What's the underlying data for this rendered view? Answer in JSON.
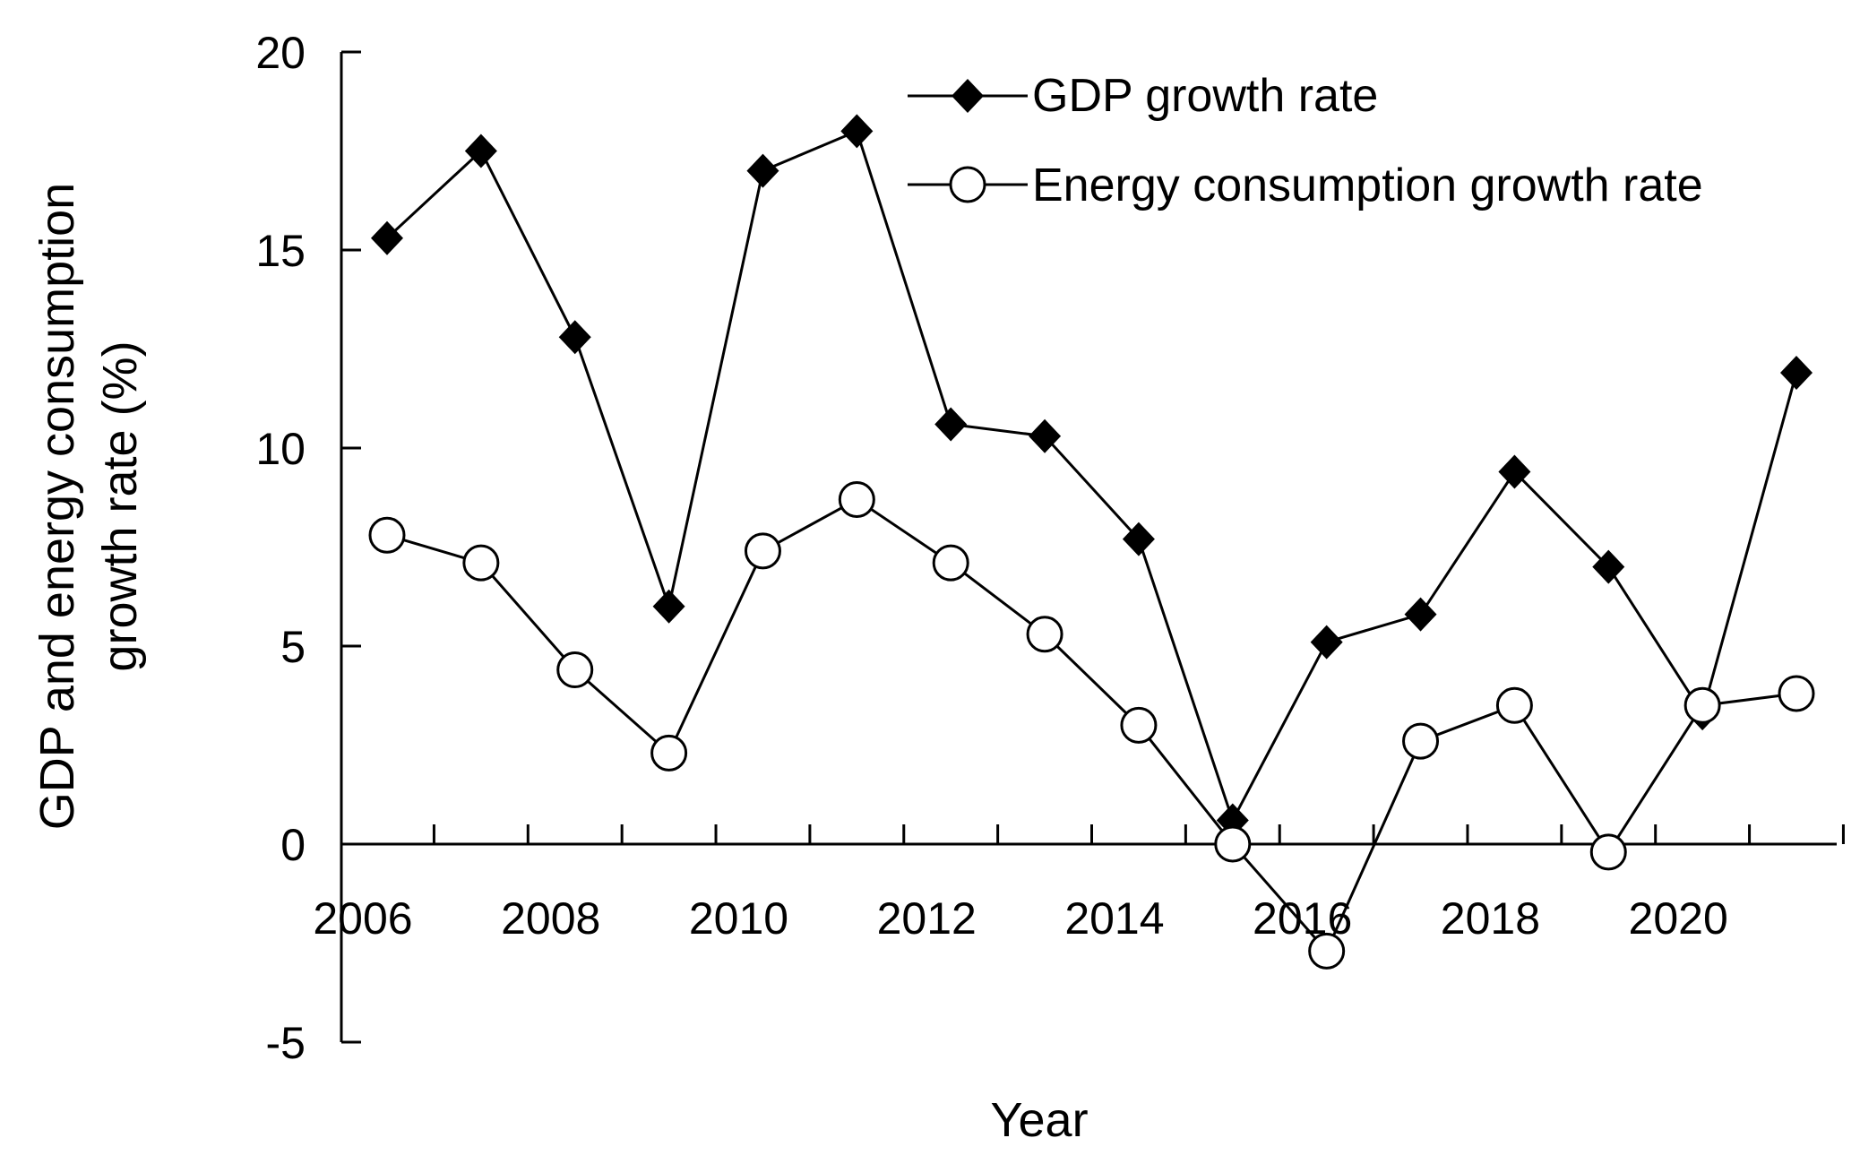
{
  "chart_data": {
    "type": "line",
    "title": "",
    "xlabel": "Year",
    "ylabel_lines": [
      "GDP and energy consumption",
      "growth rate (%)"
    ],
    "x": [
      2006,
      2007,
      2008,
      2009,
      2010,
      2011,
      2012,
      2013,
      2014,
      2015,
      2016,
      2017,
      2018,
      2019,
      2020,
      2021
    ],
    "xticks": [
      "2006",
      "2008",
      "2010",
      "2012",
      "2014",
      "2016",
      "2018",
      "2020"
    ],
    "yticks": [
      "20",
      "15",
      "10",
      "5",
      "0",
      "-5"
    ],
    "ylim": [
      -5,
      20
    ],
    "legend_position": "top-right",
    "series": [
      {
        "name": "GDP growth rate",
        "marker": "filled-diamond",
        "color": "#000000",
        "values": [
          15.3,
          17.5,
          12.8,
          6.0,
          17.0,
          18.0,
          10.6,
          10.3,
          7.7,
          0.6,
          5.1,
          5.8,
          9.4,
          7.0,
          3.3,
          11.9
        ]
      },
      {
        "name": "Energy consumption growth rate",
        "marker": "open-circle",
        "color": "#000000",
        "values": [
          7.8,
          7.1,
          4.4,
          2.3,
          7.4,
          8.7,
          7.1,
          5.3,
          3.0,
          0.0,
          -2.7,
          2.6,
          3.5,
          -0.2,
          3.5,
          3.8
        ]
      }
    ]
  }
}
